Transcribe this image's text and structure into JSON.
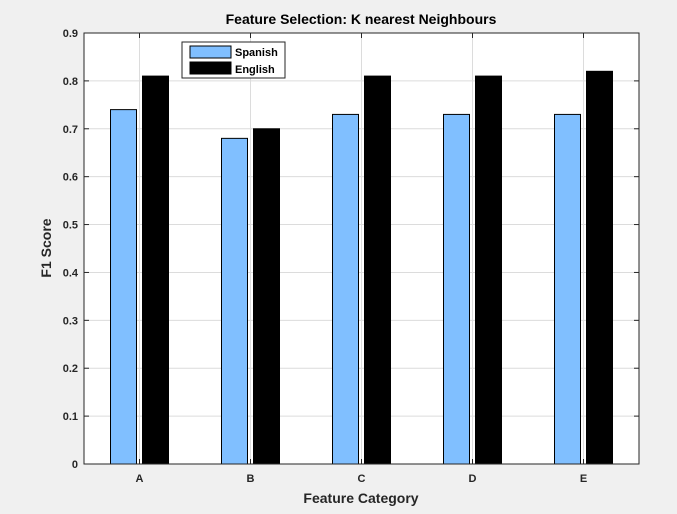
{
  "chart_data": {
    "type": "bar",
    "title": "Feature Selection: K nearest Neighbours",
    "xlabel": "Feature Category",
    "ylabel": "F1 Score",
    "categories": [
      "A",
      "B",
      "C",
      "D",
      "E"
    ],
    "series": [
      {
        "name": "Spanish",
        "values": [
          0.74,
          0.68,
          0.73,
          0.73,
          0.73
        ],
        "color": "#80bfff"
      },
      {
        "name": "English",
        "values": [
          0.81,
          0.7,
          0.81,
          0.81,
          0.82
        ],
        "color": "#000000"
      }
    ],
    "ylim": [
      0,
      0.9
    ],
    "yticks": [
      "0",
      "0.1",
      "0.2",
      "0.3",
      "0.4",
      "0.5",
      "0.6",
      "0.7",
      "0.8",
      "0.9"
    ],
    "grid": true,
    "legend_position": "top-left",
    "background_color": "#f0f0f0",
    "axes_color": "#ffffff"
  }
}
